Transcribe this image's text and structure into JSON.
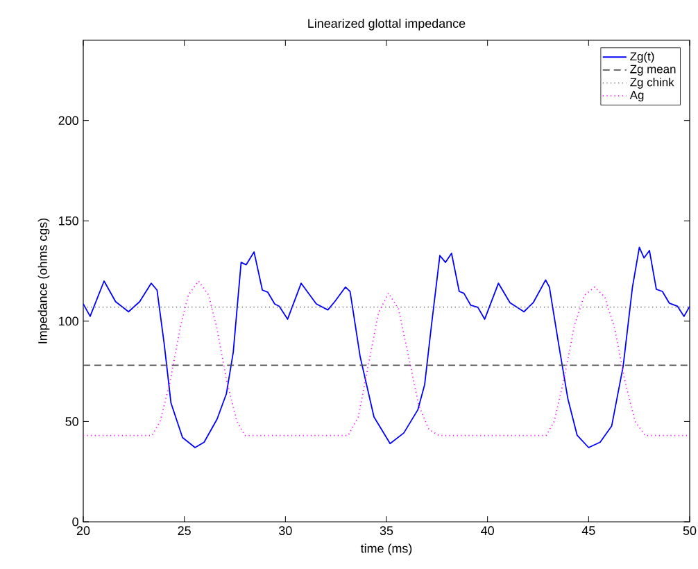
{
  "chart_data": {
    "type": "line",
    "title": "Linearized glottal impedance",
    "xlabel": "time (ms)",
    "ylabel": "Impedance (ohms cgs)",
    "xlim": [
      20,
      50
    ],
    "ylim": [
      0,
      240
    ],
    "xticks": [
      20,
      25,
      30,
      35,
      40,
      45,
      50
    ],
    "yticks": [
      0,
      50,
      100,
      150,
      200
    ],
    "grid": false,
    "legend": "top right",
    "series": [
      {
        "name": "Zg(t)",
        "color": "#0000ff",
        "line_style": "solid",
        "x": [
          20,
          20.34,
          21.03,
          21.6,
          22.24,
          22.79,
          23.36,
          23.65,
          24.0,
          24.34,
          24.91,
          25.53,
          25.98,
          26.62,
          27.08,
          27.42,
          27.81,
          28.06,
          28.45,
          28.86,
          29.13,
          29.47,
          29.7,
          30.11,
          30.78,
          31.53,
          32.1,
          32.44,
          32.97,
          33.2,
          33.7,
          34.38,
          35.18,
          35.86,
          36.55,
          36.89,
          37.23,
          37.64,
          37.92,
          38.22,
          38.6,
          38.83,
          39.17,
          39.52,
          39.86,
          40.54,
          41.11,
          41.8,
          42.26,
          42.87,
          43.06,
          43.51,
          43.97,
          44.43,
          45.0,
          45.57,
          46.14,
          46.71,
          47.17,
          47.51,
          47.74,
          48.01,
          48.35,
          48.65,
          48.99,
          49.4,
          49.72,
          50.0
        ],
        "values": [
          108.6,
          102.4,
          120,
          109.7,
          104.7,
          109.7,
          118.9,
          115.5,
          89,
          59.2,
          42,
          37,
          39.7,
          51.2,
          63.8,
          84.5,
          129.3,
          128.1,
          134.5,
          115.5,
          114.4,
          108.6,
          107.4,
          101,
          118.9,
          108.6,
          105.6,
          109.7,
          117,
          114.8,
          82.2,
          52.3,
          39,
          44.3,
          55.8,
          68.4,
          98.3,
          132.7,
          129.3,
          133.8,
          114.8,
          113.9,
          107.9,
          106.9,
          101,
          118.9,
          109.2,
          104.7,
          109.2,
          120.5,
          117,
          89,
          61.5,
          43.2,
          37,
          39.7,
          47.7,
          77.6,
          117,
          136.8,
          131.5,
          135.2,
          115.9,
          114.8,
          109,
          107.4,
          102.4,
          107.4
        ]
      },
      {
        "name": "Zg mean",
        "color": "#555555",
        "line_style": "dashed",
        "x": [
          20,
          50
        ],
        "values": [
          78,
          78
        ]
      },
      {
        "name": "Zg chink",
        "color": "#777777",
        "line_style": "dotted",
        "x": [
          20,
          50
        ],
        "values": [
          107,
          107
        ]
      },
      {
        "name": "Ag",
        "color": "#ff00ff",
        "line_style": "dotted",
        "x": [
          20,
          23.4,
          23.8,
          24.3,
          24.8,
          25.2,
          25.7,
          26.2,
          26.6,
          27.1,
          27.6,
          28.0,
          33.1,
          33.6,
          34.1,
          34.6,
          35.1,
          35.6,
          36.1,
          36.6,
          37.1,
          37.6,
          42.9,
          43.3,
          43.8,
          44.3,
          44.8,
          45.3,
          45.8,
          46.3,
          46.8,
          47.3,
          47.8,
          50
        ],
        "values": [
          43,
          43,
          50,
          70,
          97,
          113,
          120,
          113,
          97,
          70,
          50,
          43,
          43,
          52,
          78,
          104,
          114,
          106,
          82,
          58,
          46,
          43,
          43,
          50,
          72,
          98,
          113,
          117,
          112,
          96,
          70,
          50,
          43,
          43
        ]
      }
    ]
  }
}
